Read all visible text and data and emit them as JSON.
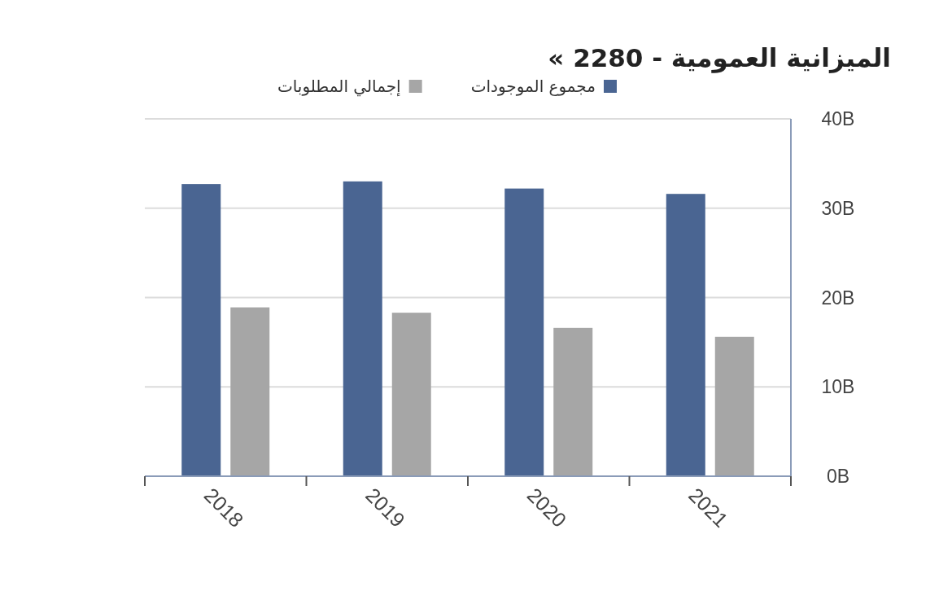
{
  "chart_data": {
    "type": "bar",
    "title": "الميزانية العمومية - 2280 »",
    "categories": [
      "2018",
      "2019",
      "2020",
      "2021"
    ],
    "series": [
      {
        "name": "مجموع الموجودات",
        "color": "#4a6592",
        "values": [
          32.7,
          33.0,
          32.2,
          31.6
        ]
      },
      {
        "name": "إجمالي المطلوبات",
        "color": "#a6a6a6",
        "values": [
          18.9,
          18.3,
          16.6,
          15.6
        ]
      }
    ],
    "ylim": [
      0,
      40
    ],
    "yticks": [
      {
        "value": 0,
        "label": "0B"
      },
      {
        "value": 10,
        "label": "10B"
      },
      {
        "value": 20,
        "label": "20B"
      },
      {
        "value": 30,
        "label": "30B"
      },
      {
        "value": 40,
        "label": "40B"
      }
    ],
    "grid": "y",
    "legend": "top"
  }
}
